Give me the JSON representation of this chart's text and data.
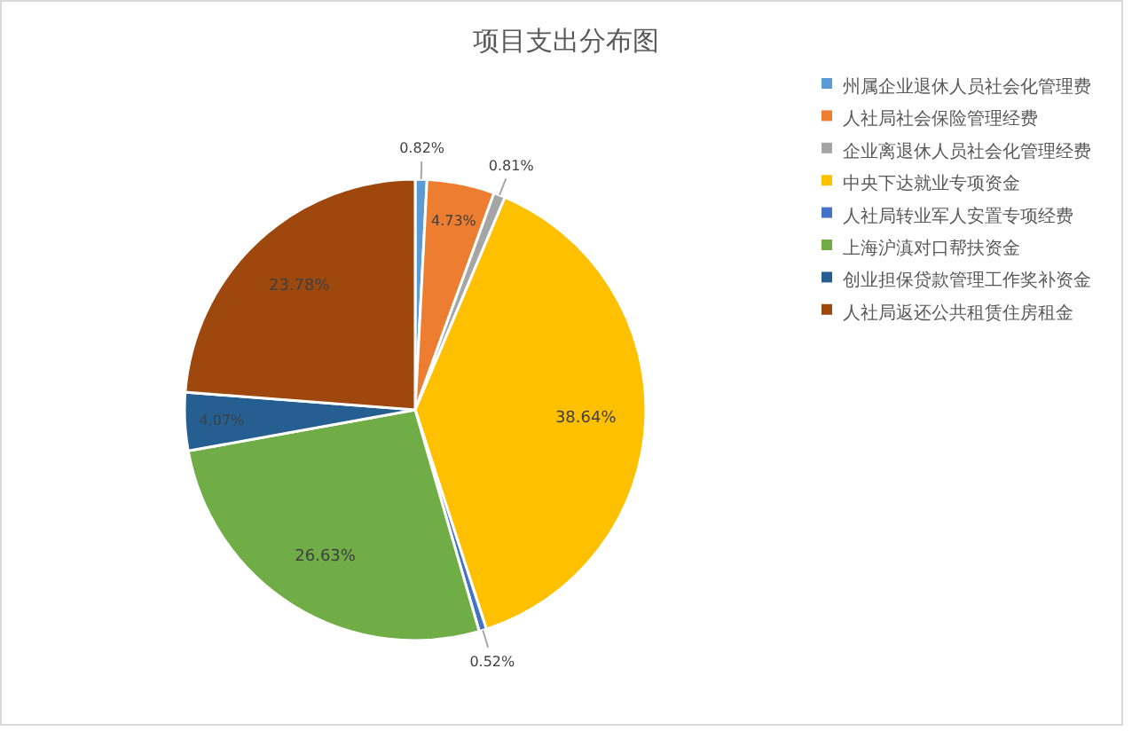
{
  "chart_data": {
    "type": "pie",
    "title": "项目支出分布图",
    "categories": [
      "州属企业退休人员社会化管理费",
      "人社局社会保险管理经费",
      "企业离退休人员社会化管理经费",
      "中央下达就业专项资金",
      "人社局转业军人安置专项经费",
      "上海沪滇对口帮扶资金",
      "创业担保贷款管理工作奖补资金",
      "人社局返还公共租赁住房租金"
    ],
    "values": [
      0.82,
      4.73,
      0.81,
      38.64,
      0.52,
      26.63,
      4.07,
      23.78
    ],
    "colors": [
      "#5b9bd5",
      "#ed7d31",
      "#a5a5a5",
      "#ffc000",
      "#4472c4",
      "#70ad47",
      "#255e91",
      "#9e480e"
    ],
    "value_labels": [
      "0.82%",
      "4.73%",
      "0.81%",
      "38.64%",
      "0.52%",
      "26.63%",
      "4.07%",
      "23.78%"
    ],
    "legend": "right"
  }
}
